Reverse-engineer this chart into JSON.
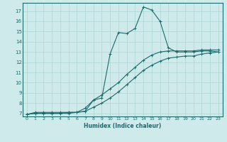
{
  "xlabel": "Humidex (Indice chaleur)",
  "ylabel": "",
  "xlim": [
    -0.5,
    23.5
  ],
  "ylim": [
    6.7,
    17.8
  ],
  "yticks": [
    7,
    8,
    9,
    10,
    11,
    12,
    13,
    14,
    15,
    16,
    17
  ],
  "xticks": [
    0,
    1,
    2,
    3,
    4,
    5,
    6,
    7,
    8,
    9,
    10,
    11,
    12,
    13,
    14,
    15,
    16,
    17,
    18,
    19,
    20,
    21,
    22,
    23
  ],
  "background_color": "#ceeaea",
  "line_color": "#1a6b6b",
  "grid_color": "#aed4d4",
  "line1_x": [
    0,
    1,
    2,
    3,
    4,
    5,
    6,
    7,
    8,
    9,
    10,
    11,
    12,
    13,
    14,
    15,
    16,
    17,
    18,
    19,
    20,
    21,
    22,
    23
  ],
  "line1_y": [
    6.9,
    7.1,
    7.1,
    7.1,
    7.1,
    7.1,
    7.1,
    7.2,
    8.3,
    8.5,
    12.8,
    14.9,
    14.8,
    15.3,
    17.4,
    17.1,
    16.0,
    13.4,
    13.0,
    13.0,
    13.0,
    13.1,
    13.1,
    13.0
  ],
  "line2_x": [
    0,
    1,
    2,
    3,
    4,
    5,
    6,
    7,
    8,
    9,
    10,
    11,
    12,
    13,
    14,
    15,
    16,
    17,
    18,
    19,
    20,
    21,
    22,
    23
  ],
  "line2_y": [
    6.9,
    7.0,
    7.0,
    7.0,
    7.0,
    7.1,
    7.1,
    7.5,
    8.3,
    8.8,
    9.4,
    10.0,
    10.8,
    11.5,
    12.2,
    12.7,
    13.0,
    13.1,
    13.1,
    13.1,
    13.1,
    13.2,
    13.2,
    13.2
  ],
  "line3_x": [
    0,
    1,
    2,
    3,
    4,
    5,
    6,
    7,
    8,
    9,
    10,
    11,
    12,
    13,
    14,
    15,
    16,
    17,
    18,
    19,
    20,
    21,
    22,
    23
  ],
  "line3_y": [
    6.9,
    7.0,
    7.0,
    7.0,
    7.0,
    7.0,
    7.1,
    7.2,
    7.6,
    8.0,
    8.5,
    9.1,
    9.8,
    10.5,
    11.2,
    11.7,
    12.1,
    12.4,
    12.5,
    12.6,
    12.6,
    12.8,
    12.9,
    13.0
  ]
}
